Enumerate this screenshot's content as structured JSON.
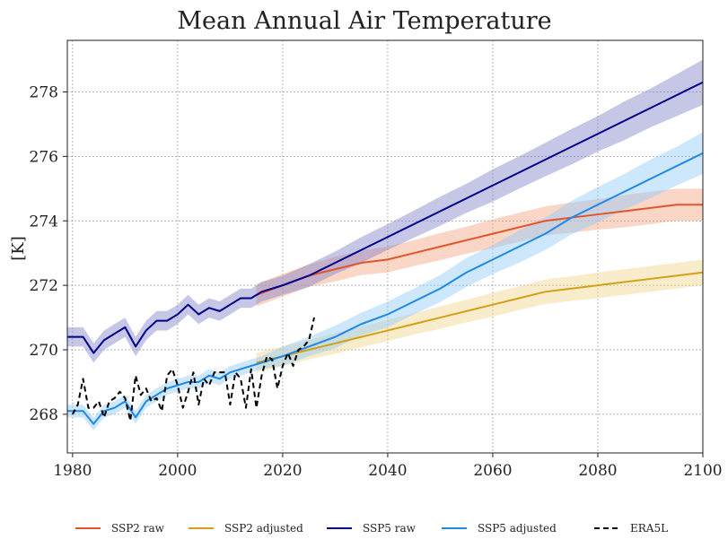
{
  "chart_data": {
    "type": "line",
    "title": "Mean Annual Air Temperature",
    "xlabel": "",
    "ylabel": "[K]",
    "xlim": [
      1979,
      2100
    ],
    "ylim": [
      266.8,
      279.6
    ],
    "grid": true,
    "legend_position": "bottom",
    "x_ticks": [
      1980,
      2000,
      2020,
      2040,
      2060,
      2080,
      2100
    ],
    "y_ticks": [
      268,
      270,
      272,
      274,
      276,
      278
    ],
    "series": [
      {
        "name": "SSP2 raw",
        "color": "#e0562a",
        "band_color": "#f4a582",
        "style": "solid",
        "x": [
          2015,
          2020,
          2025,
          2030,
          2035,
          2040,
          2045,
          2050,
          2055,
          2060,
          2065,
          2070,
          2075,
          2080,
          2085,
          2090,
          2095,
          2100
        ],
        "values": [
          271.7,
          272.0,
          272.3,
          272.5,
          272.7,
          272.8,
          273.0,
          273.2,
          273.4,
          273.6,
          273.8,
          274.0,
          274.1,
          274.2,
          274.3,
          274.4,
          274.5,
          274.5
        ],
        "band": [
          0.35,
          0.35,
          0.35,
          0.38,
          0.38,
          0.4,
          0.4,
          0.42,
          0.42,
          0.45,
          0.45,
          0.45,
          0.47,
          0.47,
          0.5,
          0.5,
          0.5,
          0.5
        ]
      },
      {
        "name": "SSP2 adjusted",
        "color": "#d4a017",
        "band_color": "#f0d48a",
        "style": "solid",
        "x": [
          2015,
          2020,
          2025,
          2030,
          2035,
          2040,
          2045,
          2050,
          2055,
          2060,
          2065,
          2070,
          2075,
          2080,
          2085,
          2090,
          2095,
          2100
        ],
        "values": [
          269.6,
          269.8,
          270.0,
          270.2,
          270.4,
          270.6,
          270.8,
          271.0,
          271.2,
          271.4,
          271.6,
          271.8,
          271.9,
          272.0,
          272.1,
          272.2,
          272.3,
          272.4
        ],
        "band": [
          0.3,
          0.3,
          0.3,
          0.32,
          0.32,
          0.33,
          0.33,
          0.35,
          0.35,
          0.37,
          0.37,
          0.38,
          0.38,
          0.4,
          0.4,
          0.4,
          0.4,
          0.4
        ]
      },
      {
        "name": "SSP5 raw",
        "color": "#00008b",
        "band_color": "#8080c8",
        "style": "solid",
        "x": [
          1979,
          1982,
          1984,
          1986,
          1988,
          1990,
          1992,
          1994,
          1996,
          1998,
          2000,
          2002,
          2004,
          2006,
          2008,
          2010,
          2012,
          2014,
          2016,
          2018,
          2020,
          2025,
          2030,
          2035,
          2040,
          2045,
          2050,
          2055,
          2060,
          2065,
          2070,
          2075,
          2080,
          2085,
          2090,
          2095,
          2100
        ],
        "values": [
          270.4,
          270.4,
          269.9,
          270.3,
          270.5,
          270.7,
          270.1,
          270.6,
          270.9,
          270.9,
          271.1,
          271.4,
          271.1,
          271.3,
          271.2,
          271.4,
          271.6,
          271.6,
          271.8,
          271.9,
          272.0,
          272.3,
          272.7,
          273.1,
          273.5,
          273.9,
          274.3,
          274.7,
          275.1,
          275.5,
          275.9,
          276.3,
          276.7,
          277.1,
          277.5,
          277.9,
          278.3
        ],
        "band": [
          0.3,
          0.3,
          0.3,
          0.3,
          0.3,
          0.3,
          0.3,
          0.3,
          0.3,
          0.3,
          0.3,
          0.3,
          0.3,
          0.3,
          0.3,
          0.3,
          0.3,
          0.3,
          0.3,
          0.3,
          0.3,
          0.35,
          0.35,
          0.4,
          0.4,
          0.42,
          0.45,
          0.45,
          0.5,
          0.5,
          0.52,
          0.55,
          0.55,
          0.6,
          0.6,
          0.65,
          0.7
        ]
      },
      {
        "name": "SSP5 adjusted",
        "color": "#1e88e5",
        "band_color": "#90caf9",
        "style": "solid",
        "x": [
          1979,
          1982,
          1984,
          1986,
          1988,
          1990,
          1992,
          1994,
          1996,
          1998,
          2000,
          2002,
          2004,
          2006,
          2008,
          2010,
          2012,
          2014,
          2016,
          2018,
          2020,
          2025,
          2030,
          2035,
          2040,
          2045,
          2050,
          2055,
          2060,
          2065,
          2070,
          2075,
          2080,
          2085,
          2090,
          2095,
          2100
        ],
        "values": [
          268.1,
          268.1,
          267.7,
          268.1,
          268.2,
          268.4,
          267.9,
          268.4,
          268.6,
          268.8,
          268.9,
          269.0,
          269.0,
          269.2,
          269.1,
          269.3,
          269.4,
          269.5,
          269.6,
          269.7,
          269.8,
          270.1,
          270.4,
          270.8,
          271.1,
          271.5,
          271.9,
          272.4,
          272.8,
          273.2,
          273.6,
          274.1,
          274.5,
          274.9,
          275.3,
          275.7,
          276.1
        ],
        "band": [
          0.2,
          0.2,
          0.2,
          0.2,
          0.2,
          0.2,
          0.2,
          0.2,
          0.2,
          0.2,
          0.2,
          0.2,
          0.2,
          0.2,
          0.2,
          0.2,
          0.2,
          0.2,
          0.2,
          0.25,
          0.3,
          0.3,
          0.35,
          0.35,
          0.4,
          0.4,
          0.42,
          0.45,
          0.45,
          0.5,
          0.5,
          0.52,
          0.55,
          0.55,
          0.6,
          0.6,
          0.65
        ]
      },
      {
        "name": "ERA5L",
        "color": "#000000",
        "style": "dashed",
        "x": [
          1980,
          1981,
          1982,
          1983,
          1984,
          1985,
          1986,
          1987,
          1988,
          1989,
          1990,
          1991,
          1992,
          1993,
          1994,
          1995,
          1996,
          1997,
          1998,
          1999,
          2000,
          2001,
          2002,
          2003,
          2004,
          2005,
          2006,
          2007,
          2008,
          2009,
          2010,
          2011,
          2012,
          2013,
          2014,
          2015,
          2016,
          2017,
          2018,
          2019,
          2020,
          2021,
          2022,
          2023,
          2024,
          2025,
          2026
        ],
        "values": [
          268.0,
          268.3,
          269.1,
          268.2,
          268.2,
          268.4,
          267.9,
          268.4,
          268.5,
          268.7,
          268.5,
          267.8,
          269.2,
          268.6,
          268.8,
          268.4,
          268.5,
          268.1,
          269.2,
          269.4,
          268.9,
          268.2,
          268.7,
          269.3,
          268.3,
          269.1,
          268.9,
          269.3,
          269.3,
          269.3,
          268.3,
          269.3,
          269.1,
          268.2,
          269.4,
          268.2,
          269.2,
          269.8,
          269.7,
          268.8,
          269.5,
          269.9,
          269.5,
          270.0,
          270.1,
          270.3,
          271.0
        ]
      }
    ]
  }
}
